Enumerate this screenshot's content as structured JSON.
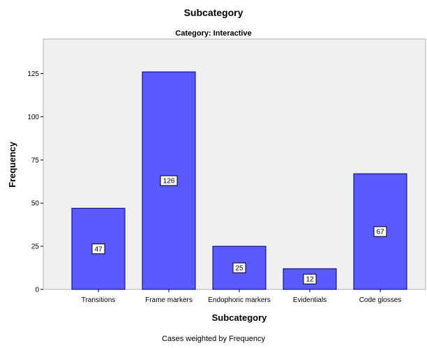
{
  "chart_data": {
    "type": "bar",
    "title": "Subcategory",
    "subtitle": "Category: Interactive",
    "xlabel": "Subcategory",
    "ylabel": "Frequency",
    "footnote": "Cases weighted by Frequency",
    "categories": [
      "Transitions",
      "Frame markers",
      "Endophoric markers",
      "Evidentials",
      "Code glosses"
    ],
    "values": [
      47,
      126,
      25,
      12,
      67
    ],
    "ylim": [
      0,
      145
    ],
    "yticks": [
      0,
      25,
      50,
      75,
      100,
      125
    ],
    "ytick_labels": [
      "0",
      "25",
      "50",
      "75",
      "100",
      "125"
    ],
    "grid": false,
    "legend": "none",
    "data_labels": true,
    "colors": {
      "bar_fill": "#5a5aff",
      "bar_stroke": "#00007a",
      "plot_background": "#f0f0f0",
      "plot_border": "#b0b0b0"
    }
  }
}
